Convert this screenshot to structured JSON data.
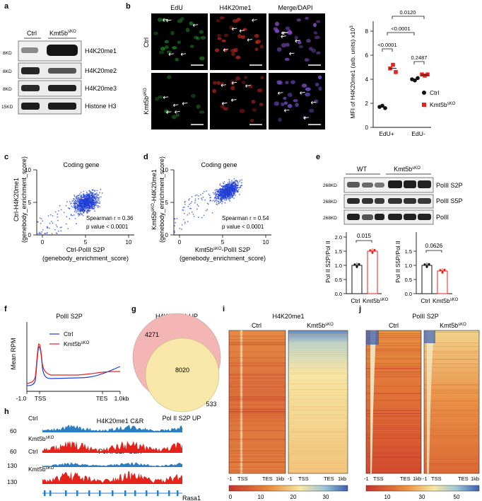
{
  "panels": {
    "a": {
      "letter": "a",
      "col_ctrl": "Ctrl",
      "col_ko": "Kmt5b",
      "ko_sup": "sKO",
      "mw": [
        "8KD",
        "8KD",
        "8KD",
        "15KD"
      ],
      "bands": [
        "H4K20me1",
        "H4K20me2",
        "H4K20me3",
        "Histone H3"
      ]
    },
    "b": {
      "letter": "b",
      "col_titles": [
        "EdU",
        "H4K20me1",
        "Merge/DAPI"
      ],
      "row_ctrl": "Ctrl",
      "row_ko": "Kmt5b",
      "row_ko_sup": "sKO",
      "plot": {
        "ylabel": "MFI of H4K20me1 (arb. units) x10",
        "ylabel_sup": "3",
        "yticks": [
          "0",
          "2",
          "4",
          "6",
          "8"
        ],
        "xticks": [
          "EdU+",
          "EdU-"
        ],
        "legend_ctrl": "Ctrl",
        "legend_ko": "Kmt5b",
        "legend_ko_sup": "sKO",
        "pvalues": [
          "<0.0001",
          "0.2487",
          "<0.0001",
          "0.0120"
        ]
      }
    },
    "c": {
      "letter": "c",
      "title": "Coding gene",
      "ylabel1": "Ctrl-H4K20me1",
      "ylabel2": "(genebody_enrichment_score)",
      "xlabel1": "Ctrl-PolII S2P",
      "xlabel2": "(genebody_enrichment_score)",
      "xticks": [
        "0",
        "5",
        "10"
      ],
      "yticks": [
        "0",
        "5",
        "10"
      ],
      "stat1": "Spearman r = 0.36",
      "stat2": "p value < 0.0001"
    },
    "d": {
      "letter": "d",
      "title": "Coding gene",
      "ylabel1_a": "Kmt5b",
      "ylabel1_sup": "sKO",
      "ylabel1_b": "-H4K20me1",
      "ylabel2": "(genebody_enrichment_score)",
      "xlabel1_a": "Kmt5b",
      "xlabel1_sup": "sKO",
      "xlabel1_b": "-PolII S2P",
      "xlabel2": "(genebody_enrichment_score)",
      "xticks": [
        "0",
        "5",
        "10"
      ],
      "yticks": [
        "0",
        "5",
        "10"
      ],
      "stat1": "Spearman r = 0.54",
      "stat2": "p value < 0.0001"
    },
    "e": {
      "letter": "e",
      "group_wt": "WT",
      "group_ko": "Kmt5b",
      "group_ko_sup": "sKO",
      "mw": [
        "268KD",
        "268KD",
        "268KD"
      ],
      "bands": [
        "PolII S2P",
        "PolII S5P",
        "PolII"
      ],
      "bar1": {
        "ylabel": "Pol II S2P/Pol II",
        "yticks": [
          "0.0",
          "0.5",
          "1.0",
          "1.5",
          "2.0"
        ],
        "p": "0.015",
        "values": [
          1.0,
          1.5
        ]
      },
      "bar2": {
        "ylabel": "Pol II S5P/Pol II",
        "yticks": [
          "0.0",
          "0.5",
          "1.0",
          "1.5"
        ],
        "p": "0.0626",
        "values": [
          1.0,
          0.8
        ]
      },
      "x_ctrl": "Ctrl",
      "x_ko": "Kmt5b",
      "x_ko_sup": "sKO"
    },
    "f": {
      "letter": "f",
      "title": "PolII S2P",
      "ylabel": "Mean RPM",
      "xticks": [
        "-1.0",
        "TSS",
        "TES",
        "1.0kb"
      ],
      "legend_ctrl": "Ctrl",
      "legend_ko": "Kmt5b",
      "legend_ko_sup": "sKO"
    },
    "g": {
      "letter": "g",
      "title": "H4K20me1 UP",
      "left_count": "4271",
      "overlap_count": "8020",
      "right_count": "533",
      "bottom_label": "Pol II S2P UP"
    },
    "h": {
      "letter": "h",
      "track1_title": "H4K20me1 C&R",
      "track2_title": "Pol II S2P C&R",
      "ctrl": "Ctrl",
      "ko": "Kmt5b",
      "ko_sup": "sKO",
      "scales": [
        "60",
        "60",
        "130",
        "130"
      ],
      "gene": "Rasa1"
    },
    "i": {
      "letter": "i",
      "title": "H4K20me1",
      "col_ctrl": "Ctrl",
      "col_ko": "Kmt5b",
      "col_ko_sup": "sKO",
      "axis": [
        "-1",
        "TSS",
        "TES",
        "1kb"
      ],
      "colorbar": [
        "0",
        "10",
        "20",
        "30"
      ]
    },
    "j": {
      "letter": "j",
      "title": "PolII S2P",
      "col_ctrl": "Ctrl",
      "col_ko": "Kmt5b",
      "col_ko_sup": "sKO",
      "axis": [
        "-1",
        "TSS",
        "TES",
        "1kb"
      ],
      "colorbar": [
        "10",
        "30",
        "50"
      ]
    }
  },
  "colors": {
    "ctrl_blue": "#1f3fd6",
    "ko_red": "#e8231c",
    "track_blue": "#2a7fc4",
    "track_red": "#e5231b",
    "heat_red": "#c8332c",
    "heat_yellow": "#f5e7a0",
    "heat_blue": "#3a5fb0"
  }
}
